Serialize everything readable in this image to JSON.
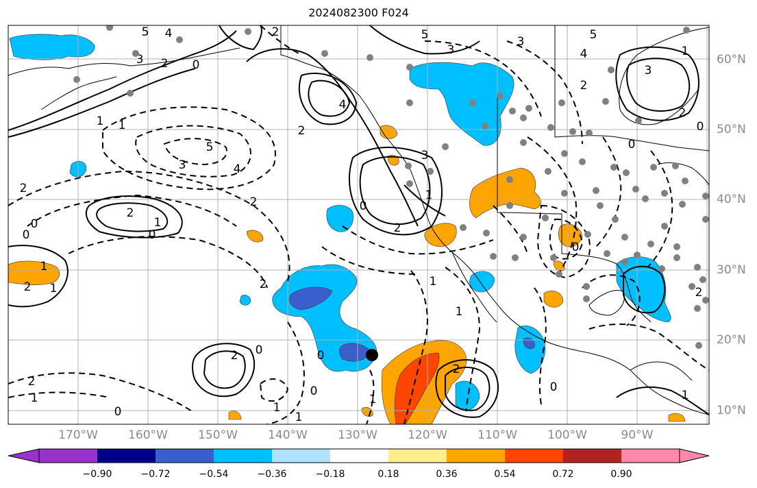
{
  "title": "2024082300 F024",
  "lat_labels": [
    "60°N",
    "50°N",
    "40°N",
    "30°N",
    "20°N",
    "10°N"
  ],
  "lon_labels": [
    "170°W",
    "160°W",
    "150°W",
    "140°W",
    "130°W",
    "120°W",
    "110°W",
    "100°W",
    "90°W"
  ],
  "colorbar": {
    "ticks": [
      "−0.90",
      "−0.72",
      "−0.54",
      "−0.36",
      "−0.18",
      "0.18",
      "0.36",
      "0.54",
      "0.72",
      "0.90"
    ],
    "colors": [
      "#9932cc",
      "#00008b",
      "#3a5fcd",
      "#00bfff",
      "#b0e2ff",
      "#ffffff",
      "#ffec8b",
      "#ffa500",
      "#ff4500",
      "#b22222",
      "#ff88aa"
    ]
  },
  "contour_labels": [
    "5",
    "4",
    "2",
    "3",
    "2",
    "0",
    "5",
    "3",
    "5",
    "4",
    "3",
    "4",
    "2",
    "1",
    "2",
    "3",
    "1",
    "1",
    "2",
    "5",
    "3",
    "4",
    "2",
    "2",
    "1",
    "0",
    "0",
    "2",
    "0",
    "1",
    "2",
    "1",
    "2",
    "0",
    "2",
    "3",
    "1",
    "0",
    "0",
    "1",
    "2",
    "1",
    "1",
    "0",
    "2",
    "0",
    "1",
    "0",
    "2",
    "1",
    "2",
    "0",
    "1",
    "1",
    "0",
    "0"
  ],
  "colors": {
    "land_border": "#000000",
    "grid": "#b0b0b0",
    "dots": "#808080",
    "marker": "#000000"
  }
}
